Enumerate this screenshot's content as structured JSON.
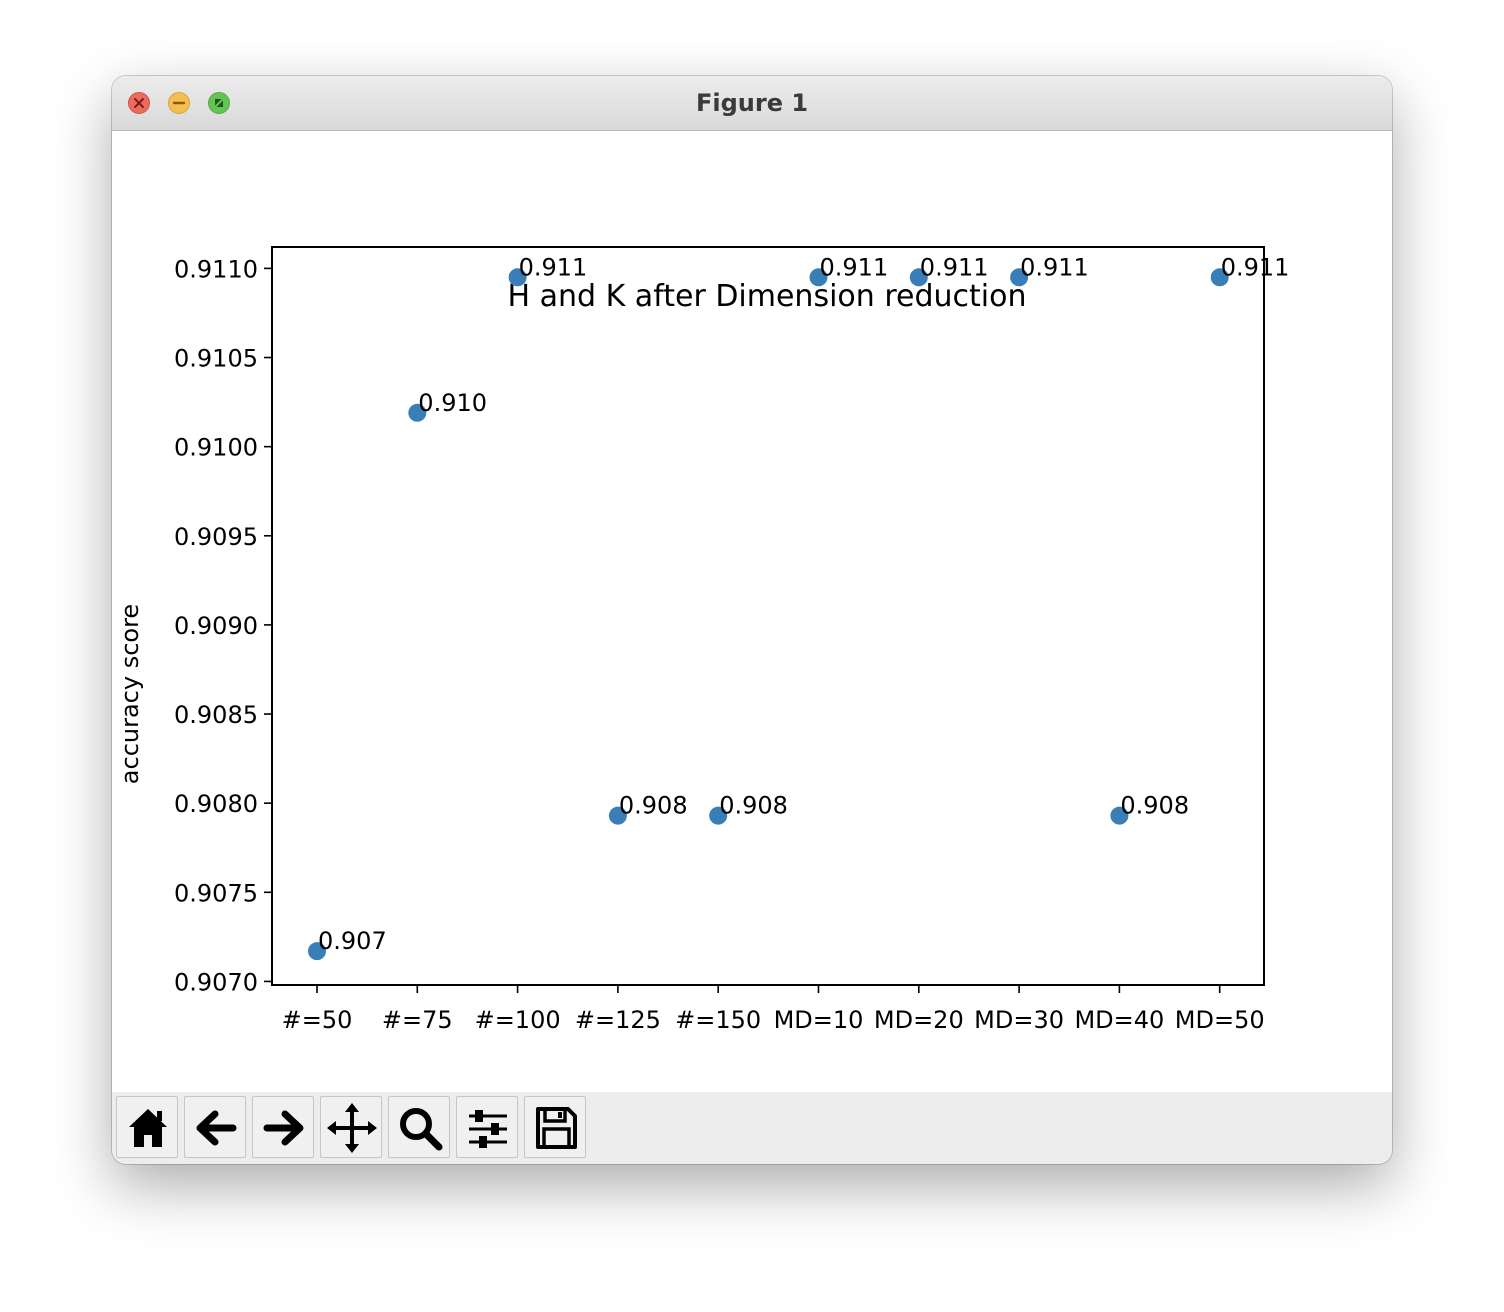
{
  "window": {
    "title": "Figure 1"
  },
  "toolbar": {
    "buttons": [
      {
        "name": "home-button",
        "icon": "home-icon"
      },
      {
        "name": "back-button",
        "icon": "arrow-left-icon"
      },
      {
        "name": "forward-button",
        "icon": "arrow-right-icon"
      },
      {
        "name": "pan-button",
        "icon": "move-icon"
      },
      {
        "name": "zoom-button",
        "icon": "magnifier-icon"
      },
      {
        "name": "configure-subplots-button",
        "icon": "sliders-icon"
      },
      {
        "name": "save-button",
        "icon": "floppy-disk-icon"
      }
    ]
  },
  "chart_data": {
    "type": "scatter",
    "title": "H and K after Dimension reduction",
    "xlabel": "",
    "ylabel": "accuracy score",
    "categories": [
      "#=50",
      "#=75",
      "#=100",
      "#=125",
      "#=150",
      "MD=10",
      "MD=20",
      "MD=30",
      "MD=40",
      "MD=50"
    ],
    "values": [
      0.90717,
      0.91019,
      0.91095,
      0.90793,
      0.90793,
      0.91095,
      0.91095,
      0.91095,
      0.90793,
      0.91095
    ],
    "point_labels": [
      "0.907",
      "0.910",
      "0.911",
      "0.908",
      "0.908",
      "0.911",
      "0.911",
      "0.911",
      "0.908",
      "0.911"
    ],
    "yticks": [
      "0.9070",
      "0.9075",
      "0.9080",
      "0.9085",
      "0.9090",
      "0.9095",
      "0.9100",
      "0.9105",
      "0.9110"
    ],
    "ylim": [
      0.90698,
      0.91112
    ],
    "grid": false,
    "marker_color": "#3a7eb8"
  }
}
